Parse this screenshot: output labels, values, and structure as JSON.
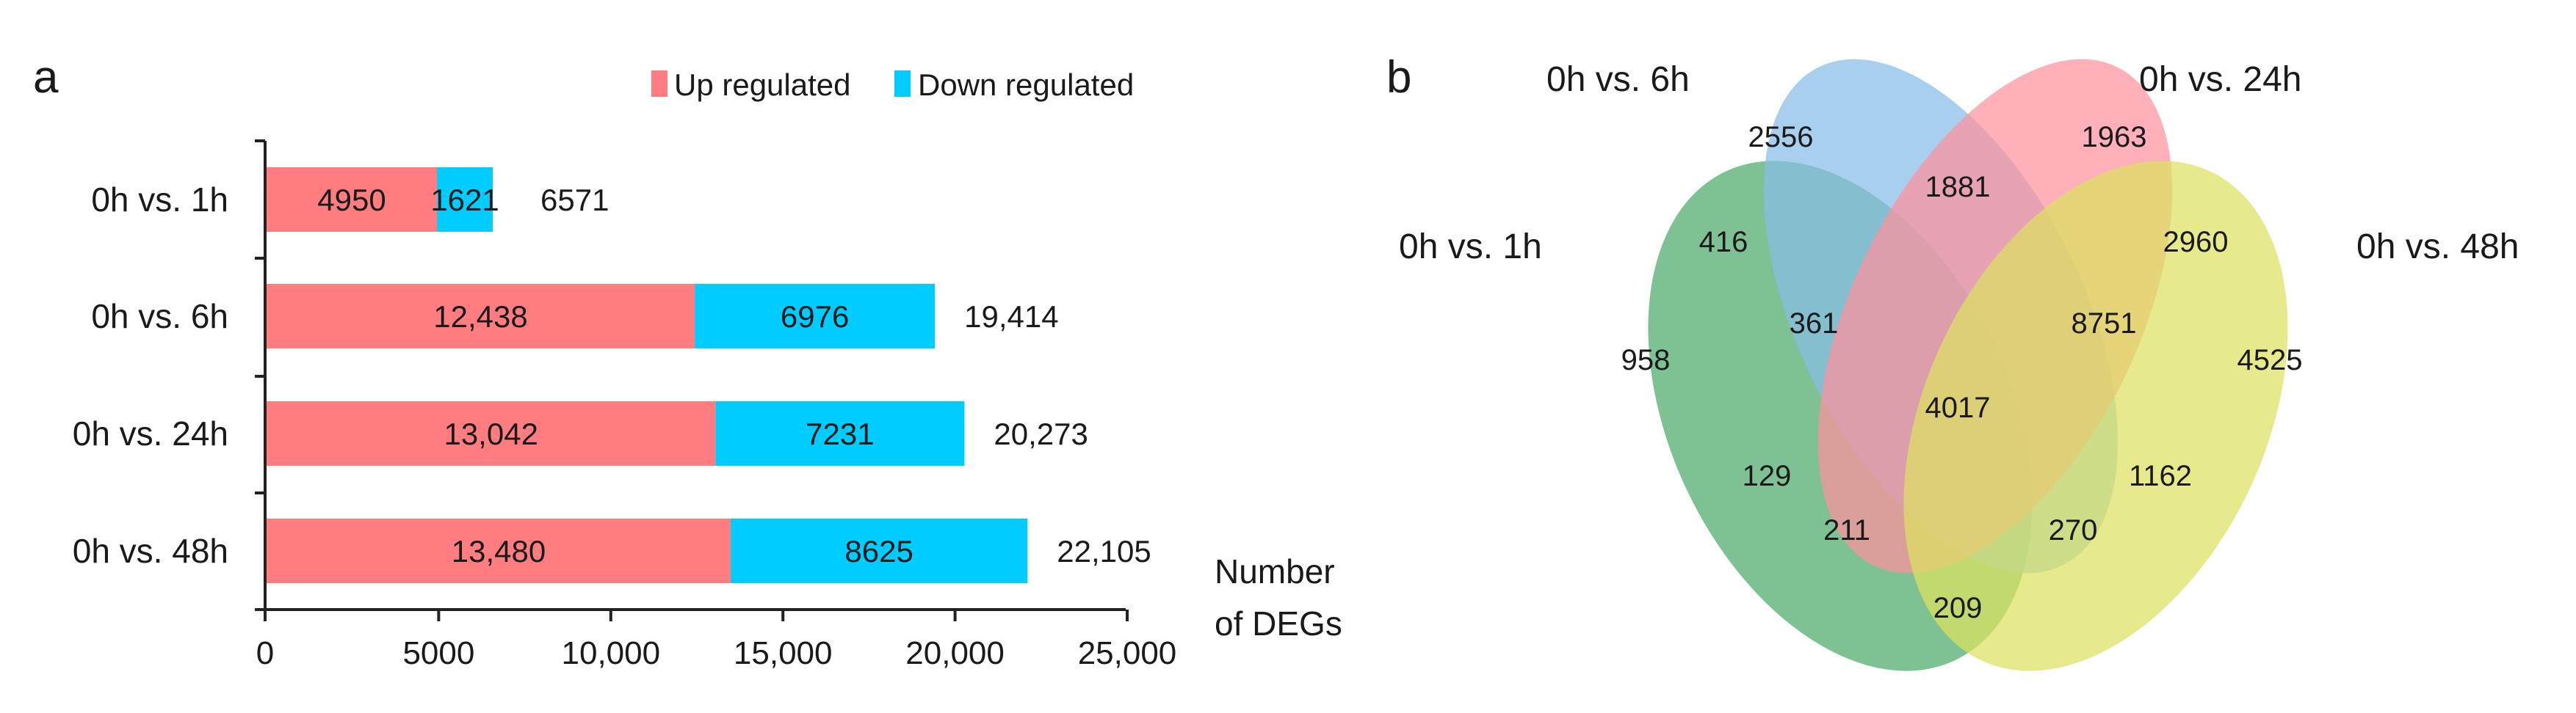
{
  "chart_data": [
    {
      "type": "bar",
      "orientation": "horizontal",
      "stacked": true,
      "panel_label": "a",
      "categories": [
        "0h vs. 1h",
        "0h vs. 6h",
        "0h vs. 24h",
        "0h vs. 48h"
      ],
      "series": [
        {
          "name": "Up regulated",
          "color": "#ff7c80",
          "values": [
            4950,
            12438,
            13042,
            13480
          ],
          "labels": [
            "4950",
            "12,438",
            "13,042",
            "13,480"
          ]
        },
        {
          "name": "Down regulated",
          "color": "#00ccff",
          "values": [
            1621,
            6976,
            7231,
            8625
          ],
          "labels": [
            "1621",
            "6976",
            "7231",
            "8625"
          ]
        }
      ],
      "totals": [
        "6571",
        "19,414",
        "20,273",
        "22,105"
      ],
      "xlabel": [
        "Number",
        "of DEGs"
      ],
      "xlim": [
        0,
        25000
      ],
      "xticks": [
        "0",
        "5000",
        "10,000",
        "15,000",
        "20,000",
        "25,000"
      ],
      "grid": false,
      "legend_placement": "top"
    },
    {
      "type": "venn",
      "panel_label": "b",
      "sets": [
        {
          "name": "0h vs. 1h",
          "color": "#4caa6a"
        },
        {
          "name": "0h vs. 6h",
          "color": "#86bde6"
        },
        {
          "name": "0h vs. 24h",
          "color": "#ff919c"
        },
        {
          "name": "0h vs. 48h",
          "color": "#dde260"
        }
      ],
      "regions": [
        {
          "sets": [
            "0h vs. 6h"
          ],
          "value": "2556"
        },
        {
          "sets": [
            "0h vs. 24h"
          ],
          "value": "1963"
        },
        {
          "sets": [
            "0h vs. 6h",
            "0h vs. 24h"
          ],
          "value": "1881"
        },
        {
          "sets": [
            "0h vs. 1h",
            "0h vs. 6h"
          ],
          "value": "416"
        },
        {
          "sets": [
            "0h vs. 24h",
            "0h vs. 48h"
          ],
          "value": "2960"
        },
        {
          "sets": [
            "0h vs. 1h",
            "0h vs. 6h",
            "0h vs. 24h"
          ],
          "value": "361"
        },
        {
          "sets": [
            "0h vs. 6h",
            "0h vs. 24h",
            "0h vs. 48h"
          ],
          "value": "8751"
        },
        {
          "sets": [
            "0h vs. 1h"
          ],
          "value": "958"
        },
        {
          "sets": [
            "0h vs. 48h"
          ],
          "value": "4525"
        },
        {
          "sets": [
            "0h vs. 1h",
            "0h vs. 6h",
            "0h vs. 24h",
            "0h vs. 48h"
          ],
          "value": "4017"
        },
        {
          "sets": [
            "0h vs. 1h",
            "0h vs. 24h"
          ],
          "value": "129"
        },
        {
          "sets": [
            "0h vs. 6h",
            "0h vs. 48h"
          ],
          "value": "1162"
        },
        {
          "sets": [
            "0h vs. 1h",
            "0h vs. 24h",
            "0h vs. 48h"
          ],
          "value": "211"
        },
        {
          "sets": [
            "0h vs. 1h",
            "0h vs. 6h",
            "0h vs. 48h"
          ],
          "value": "270"
        },
        {
          "sets": [
            "0h vs. 1h",
            "0h vs. 48h"
          ],
          "value": "209"
        }
      ]
    }
  ]
}
